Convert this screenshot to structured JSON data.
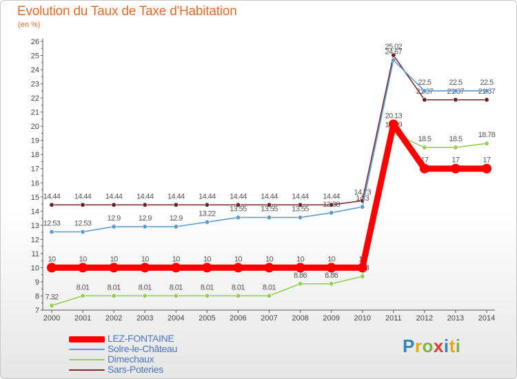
{
  "chart_data": {
    "type": "line",
    "title": "Evolution du Taux de Taxe d'Habitation",
    "subtitle": "(en %)",
    "x": [
      "2000",
      "2001",
      "2002",
      "2003",
      "2004",
      "2005",
      "2006",
      "2007",
      "2008",
      "2009",
      "2010",
      "2011",
      "2012",
      "2013",
      "2014"
    ],
    "ylim": [
      7,
      26
    ],
    "yticks": [
      7,
      8,
      9,
      10,
      11,
      12,
      13,
      14,
      15,
      16,
      17,
      18,
      19,
      20,
      21,
      22,
      23,
      24,
      25,
      26
    ],
    "grid": false,
    "legend_position": "bottom-left",
    "series": [
      {
        "name": "LEZ-FONTAINE",
        "color": "#ff0000",
        "values": [
          10,
          10,
          10,
          10,
          10,
          10,
          10,
          10,
          10,
          10,
          10,
          20.13,
          17,
          17,
          17
        ],
        "labels": [
          "10",
          "10",
          "10",
          "10",
          "10",
          "10",
          "10",
          "10",
          "10",
          "10",
          "10",
          "20.13",
          "17",
          "17",
          "17"
        ]
      },
      {
        "name": "Solre-le-Château",
        "color": "#5b9bd5",
        "values": [
          12.53,
          12.53,
          12.9,
          12.9,
          12.9,
          13.22,
          13.55,
          13.55,
          13.55,
          13.88,
          14.3,
          24.67,
          22.5,
          22.5,
          22.5
        ],
        "labels": [
          "12.53",
          "12.53",
          "12.9",
          "12.9",
          "12.9",
          "13.22",
          "13.55",
          "13.55",
          "13.55",
          "13.88",
          "14.3",
          "24.67",
          "22.5",
          "22.5",
          "22.5"
        ]
      },
      {
        "name": "Dimechaux",
        "color": "#92d050",
        "values": [
          7.32,
          8.01,
          8.01,
          8.01,
          8.01,
          8.01,
          8.01,
          8.01,
          8.86,
          8.86,
          9.38,
          19.49,
          18.5,
          18.5,
          18.78
        ],
        "labels": [
          "7.32",
          "8.01",
          "8.01",
          "8.01",
          "8.01",
          "8.01",
          "8.01",
          "8.01",
          "8.86",
          "8.86",
          "9.38",
          "19.49",
          "18.5",
          "18.5",
          "18.78"
        ]
      },
      {
        "name": "Sars-Poteries",
        "color": "#7b2c2c",
        "values": [
          14.44,
          14.44,
          14.44,
          14.44,
          14.44,
          14.44,
          14.44,
          14.44,
          14.44,
          14.44,
          14.73,
          25.02,
          21.87,
          21.87,
          21.87
        ],
        "labels": [
          "14.44",
          "14.44",
          "14.44",
          "14.44",
          "14.44",
          "14.44",
          "14.44",
          "14.44",
          "14.44",
          "14.44",
          "14.73",
          "25.02",
          "21.87",
          "21.87",
          "21.87"
        ]
      }
    ]
  },
  "brand": {
    "letters": [
      {
        "char": "P",
        "color": "#2e86c1"
      },
      {
        "char": "r",
        "color": "#f0a500"
      },
      {
        "char": "o",
        "color": "#7cb342"
      },
      {
        "char": "x",
        "color": "#e53935"
      },
      {
        "char": "i",
        "color": "#2e86c1"
      },
      {
        "char": "t",
        "color": "#f0a500"
      },
      {
        "char": "i",
        "color": "#7cb342"
      }
    ]
  }
}
